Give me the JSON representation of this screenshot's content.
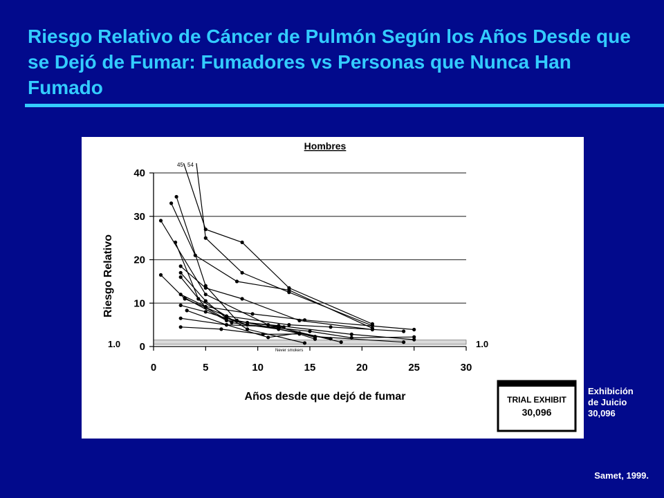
{
  "slide": {
    "title": "Riesgo Relativo de Cáncer de Pulmón Según los Años Desde que se Dejó de Fumar: Fumadores vs Personas que Nunca Han Fumado",
    "citation": "Samet, 1999.",
    "exhibit_caption": [
      "Exhibición",
      "de Juicio",
      "30,096"
    ],
    "exhibit_stamp": {
      "label": "TRIAL EXHIBIT",
      "number": "30,096"
    }
  },
  "colors": {
    "background": "#020a8c",
    "title": "#33ccff",
    "panel": "#ffffff",
    "ink": "#000000"
  },
  "chart_data": {
    "type": "line",
    "title": "Hombres",
    "xlabel": "Años desde que dejó de fumar",
    "ylabel": "Riesgo Relativo",
    "xlim": [
      0,
      30
    ],
    "ylim": [
      0,
      40
    ],
    "xticks": [
      0,
      5,
      10,
      15,
      20,
      25,
      30
    ],
    "yticks": [
      0,
      10,
      20,
      30,
      40
    ],
    "grid": "horizontal",
    "reference_line": {
      "value": 1.0,
      "label_left": "1.0",
      "label_right": "1.0"
    },
    "never_smokers_label": "Never smokers",
    "truncated_labels": [
      "45",
      "54"
    ],
    "series": [
      {
        "x": [
          2.5,
          5,
          8.5,
          13,
          21
        ],
        "y": [
          45,
          27,
          24,
          13.5,
          5.2
        ]
      },
      {
        "x": [
          3.5,
          5,
          8.5,
          13,
          21
        ],
        "y": [
          54,
          25,
          17,
          12.5,
          4.8
        ]
      },
      {
        "x": [
          0.7,
          5,
          11,
          18
        ],
        "y": [
          29,
          12,
          5,
          1
        ]
      },
      {
        "x": [
          1.7,
          4,
          8,
          13,
          21
        ],
        "y": [
          33,
          21,
          15,
          13,
          4.2
        ]
      },
      {
        "x": [
          2.2,
          5,
          8,
          14
        ],
        "y": [
          34.5,
          14,
          6,
          3
        ]
      },
      {
        "x": [
          2.1,
          4.3,
          7,
          9,
          14.5
        ],
        "y": [
          24,
          11,
          7,
          4,
          0.8
        ]
      },
      {
        "x": [
          2.6,
          5,
          8.5,
          14,
          21
        ],
        "y": [
          18.5,
          13.5,
          11,
          6,
          3.9
        ]
      },
      {
        "x": [
          2.6,
          5,
          7,
          9,
          12.5
        ],
        "y": [
          17,
          10.5,
          6.5,
          5.5,
          4.5
        ]
      },
      {
        "x": [
          2.6,
          5,
          7.5,
          12,
          17
        ],
        "y": [
          16,
          9,
          5.5,
          4,
          1.8
        ]
      },
      {
        "x": [
          2.6,
          5,
          9.5,
          14.5,
          25
        ],
        "y": [
          12,
          9.2,
          7.5,
          6.1,
          3.9
        ]
      },
      {
        "x": [
          0.7,
          3,
          7,
          13,
          17,
          24
        ],
        "y": [
          16.5,
          11,
          7,
          5,
          4.5,
          3.5
        ]
      },
      {
        "x": [
          3,
          7,
          12,
          19,
          25
        ],
        "y": [
          11.2,
          6,
          4.8,
          2.8,
          1.6
        ]
      },
      {
        "x": [
          2.6,
          5,
          9,
          15,
          19,
          25
        ],
        "y": [
          9.5,
          8,
          5,
          3.5,
          2,
          2.2
        ]
      },
      {
        "x": [
          3.2,
          7,
          12,
          15.5,
          24
        ],
        "y": [
          8.3,
          5,
          4.5,
          2.3,
          1
        ]
      },
      {
        "x": [
          2.6,
          7,
          11,
          14,
          15.5
        ],
        "y": [
          6.5,
          5,
          2.1,
          3.1,
          2.1
        ]
      },
      {
        "x": [
          2.6,
          6.5,
          10.5,
          14,
          15.5
        ],
        "y": [
          4.5,
          4,
          2.8,
          2.9,
          1.7
        ]
      }
    ]
  }
}
